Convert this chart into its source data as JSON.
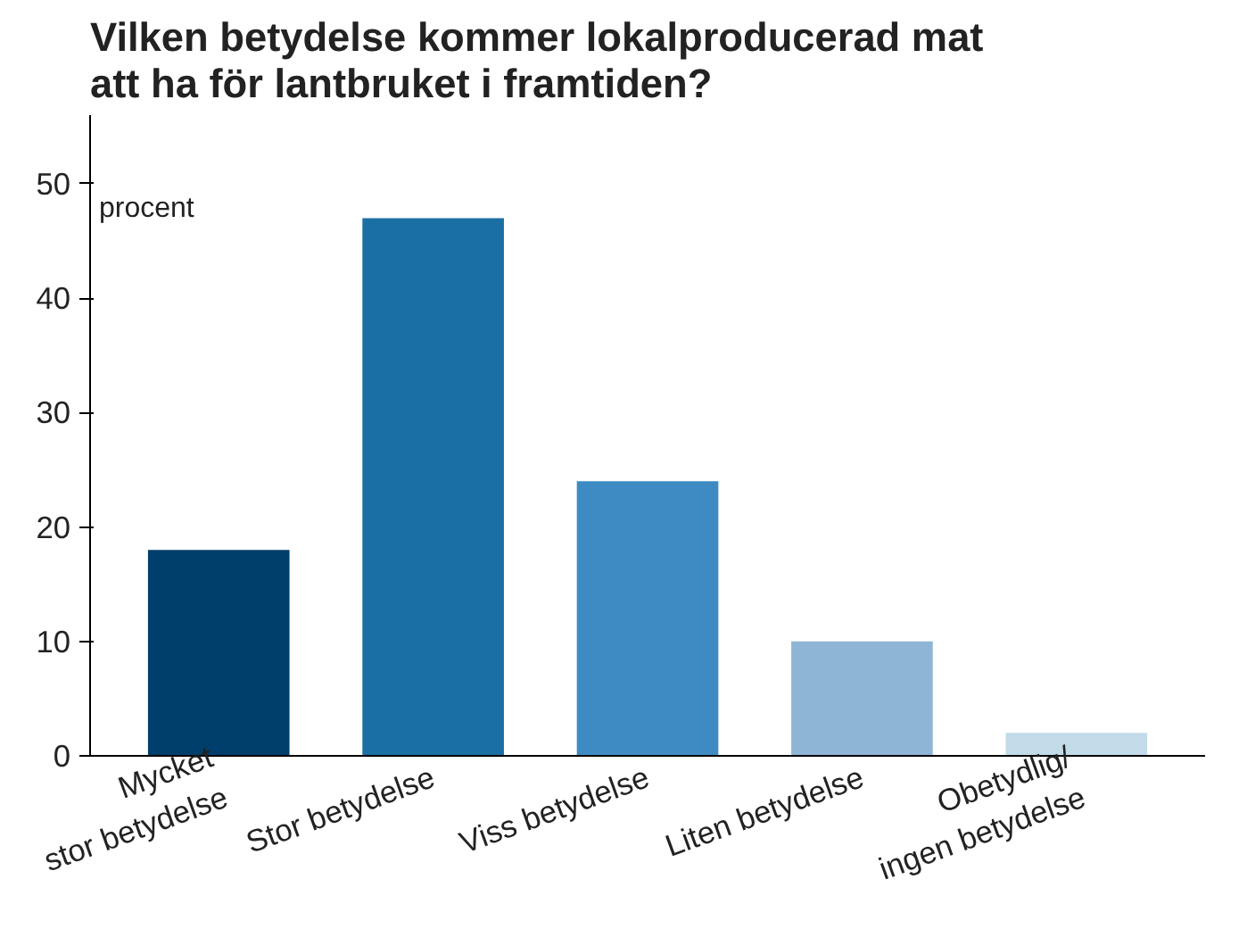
{
  "chart_data": {
    "type": "bar",
    "title": "Vilken betydelse kommer lokalproducerad mat att ha för lantbruket i framtiden?",
    "ylabel": "procent",
    "categories": [
      "Mycket\nstor betydelse",
      "Stor betydelse",
      "Viss betydelse",
      "Liten betydelse",
      "Obetydlig/\ningen betydelse"
    ],
    "values": [
      18,
      47,
      24,
      10,
      2
    ],
    "colors": [
      "#003f6b",
      "#1a6fa3",
      "#3d8bc2",
      "#8fb5d6",
      "#c2dbe8"
    ],
    "ylim": [
      0,
      56
    ],
    "yticks": [
      0,
      10,
      20,
      30,
      40,
      50
    ],
    "grid": false
  }
}
